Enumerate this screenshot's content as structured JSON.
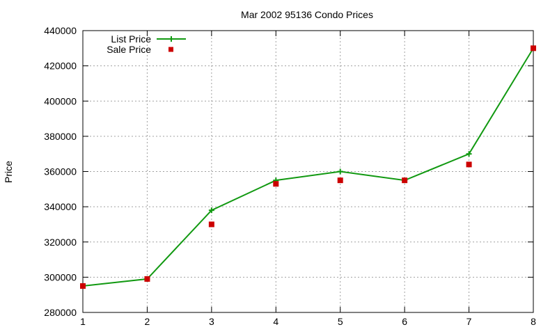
{
  "chart_data": {
    "type": "line",
    "title": "Mar 2002 95136 Condo Prices",
    "xlabel": "",
    "ylabel": "Price",
    "x": [
      1,
      2,
      3,
      4,
      5,
      6,
      7,
      8
    ],
    "xlim": [
      1,
      8
    ],
    "ylim": [
      280000,
      440000
    ],
    "xticks": [
      "1",
      "2",
      "3",
      "4",
      "5",
      "6",
      "7",
      "8"
    ],
    "yticks": [
      "280000",
      "300000",
      "320000",
      "340000",
      "360000",
      "380000",
      "400000",
      "420000",
      "440000"
    ],
    "grid": true,
    "legend_position": "top-left",
    "series": [
      {
        "name": "List Price",
        "style": "line-with-plus-markers",
        "color": "#119911",
        "values": [
          295000,
          299000,
          338000,
          355000,
          360000,
          355000,
          370000,
          430000
        ]
      },
      {
        "name": "Sale Price",
        "style": "square-markers",
        "color": "#cc0000",
        "values": [
          295000,
          299000,
          330000,
          353000,
          355000,
          355000,
          364000,
          430000
        ]
      }
    ]
  }
}
